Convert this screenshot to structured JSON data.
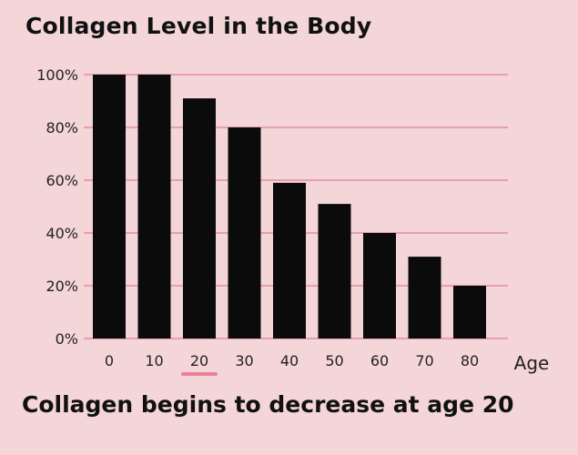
{
  "chart_data": {
    "type": "bar",
    "title": "Collagen Level in the Body",
    "caption": "Collagen begins to decrease at age 20",
    "xlabel": "Age",
    "ylabel": "",
    "categories": [
      "0",
      "10",
      "20",
      "30",
      "40",
      "50",
      "60",
      "70",
      "80"
    ],
    "values": [
      100,
      100,
      91,
      80,
      59,
      51,
      40,
      31,
      20
    ],
    "y_ticks": [
      "0%",
      "20%",
      "40%",
      "60%",
      "80%",
      "100%"
    ],
    "y_tick_values": [
      0,
      20,
      40,
      60,
      80,
      100
    ],
    "ylim": [
      0,
      100
    ],
    "highlight_category": "20",
    "grid": true,
    "legend": "none",
    "colors": {
      "background": "#f4d5d8",
      "bar": "#0b0b0b",
      "grid": "#e79fb2",
      "highlight": "#ec7f98",
      "text": "#111111"
    }
  }
}
